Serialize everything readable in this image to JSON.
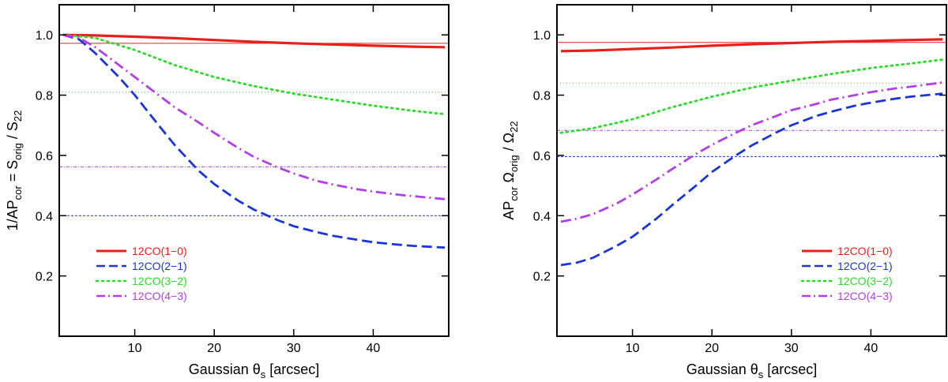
{
  "chart_data": [
    {
      "type": "line",
      "xlabel": "Gaussian θs [arcsec]",
      "xlabel_main": "Gaussian θ",
      "xlabel_sub": "s",
      "xlabel_tail": " [arcsec]",
      "ylabel": "1/APcor = Sorig / S22",
      "ylabel_parts": [
        "1/AP",
        "cor",
        " = S",
        "orig",
        " / S",
        "22"
      ],
      "xlim": [
        0.5,
        49.5
      ],
      "ylim": [
        0,
        1.1
      ],
      "xticks": [
        10,
        20,
        30,
        40
      ],
      "xtick_labels": [
        "10",
        "20",
        "30",
        "40"
      ],
      "yticks": [
        0.2,
        0.4,
        0.6,
        0.8,
        1.0
      ],
      "ytick_labels": [
        "0.2",
        "0.4",
        "0.6",
        "0.8",
        "1.0"
      ],
      "legend_position": "bottom-left",
      "series": [
        {
          "name": "12CO(1−0)",
          "color": "#e8201c",
          "style": "solid",
          "x": [
            1,
            5,
            10,
            15,
            20,
            25,
            30,
            35,
            40,
            45,
            49
          ],
          "y": [
            1.0,
            0.998,
            0.994,
            0.989,
            0.983,
            0.977,
            0.972,
            0.968,
            0.964,
            0.961,
            0.959
          ],
          "reference": 0.972
        },
        {
          "name": "12CO(2−1)",
          "color": "#1a35d8",
          "style": "dashed",
          "x": [
            1,
            3,
            5,
            8,
            10,
            13,
            15,
            18,
            20,
            23,
            25,
            28,
            30,
            33,
            35,
            38,
            40,
            43,
            45,
            49
          ],
          "y": [
            1.0,
            0.985,
            0.94,
            0.86,
            0.8,
            0.7,
            0.635,
            0.55,
            0.505,
            0.45,
            0.42,
            0.385,
            0.365,
            0.345,
            0.333,
            0.32,
            0.312,
            0.304,
            0.3,
            0.294
          ],
          "reference": 0.4
        },
        {
          "name": "12CO(3−2)",
          "color": "#2bdb2b",
          "style": "dotted",
          "x": [
            1,
            5,
            10,
            15,
            20,
            25,
            30,
            35,
            40,
            45,
            49
          ],
          "y": [
            1.0,
            0.99,
            0.95,
            0.9,
            0.86,
            0.83,
            0.805,
            0.785,
            0.765,
            0.748,
            0.737
          ],
          "reference": 0.81
        },
        {
          "name": "12CO(4−3)",
          "color": "#b23ee6",
          "style": "dashdot",
          "x": [
            1,
            3,
            5,
            8,
            10,
            13,
            15,
            18,
            20,
            23,
            25,
            28,
            30,
            33,
            35,
            38,
            40,
            43,
            45,
            49
          ],
          "y": [
            1.0,
            0.99,
            0.96,
            0.9,
            0.86,
            0.8,
            0.76,
            0.71,
            0.675,
            0.625,
            0.595,
            0.56,
            0.54,
            0.515,
            0.503,
            0.488,
            0.48,
            0.47,
            0.465,
            0.455
          ],
          "reference": 0.562
        }
      ]
    },
    {
      "type": "line",
      "xlabel": "Gaussian θs [arcsec]",
      "xlabel_main": "Gaussian θ",
      "xlabel_sub": "s",
      "xlabel_tail": " [arcsec]",
      "ylabel": "APcor Ωorig / Ω22",
      "ylabel_parts": [
        "AP",
        "cor",
        " Ω",
        "orig",
        " / Ω",
        "22"
      ],
      "xlim": [
        0.5,
        49.5
      ],
      "ylim": [
        0,
        1.1
      ],
      "xticks": [
        10,
        20,
        30,
        40
      ],
      "xtick_labels": [
        "10",
        "20",
        "30",
        "40"
      ],
      "yticks": [
        0.2,
        0.4,
        0.6,
        0.8,
        1.0
      ],
      "ytick_labels": [
        "0.2",
        "0.4",
        "0.6",
        "0.8",
        "1.0"
      ],
      "legend_position": "bottom-right",
      "series": [
        {
          "name": "12CO(1−0)",
          "color": "#e8201c",
          "style": "solid",
          "x": [
            1,
            5,
            10,
            15,
            20,
            25,
            30,
            35,
            40,
            45,
            49
          ],
          "y": [
            0.946,
            0.948,
            0.953,
            0.958,
            0.964,
            0.969,
            0.973,
            0.977,
            0.98,
            0.983,
            0.985
          ],
          "reference": 0.975
        },
        {
          "name": "12CO(2−1)",
          "color": "#1a35d8",
          "style": "dashed",
          "x": [
            1,
            3,
            5,
            8,
            10,
            13,
            15,
            18,
            20,
            23,
            25,
            28,
            30,
            33,
            35,
            38,
            40,
            43,
            45,
            49
          ],
          "y": [
            0.236,
            0.244,
            0.26,
            0.3,
            0.33,
            0.39,
            0.435,
            0.5,
            0.545,
            0.6,
            0.633,
            0.675,
            0.7,
            0.73,
            0.745,
            0.765,
            0.775,
            0.788,
            0.795,
            0.805
          ],
          "reference": 0.596
        },
        {
          "name": "12CO(3−2)",
          "color": "#2bdb2b",
          "style": "dotted",
          "x": [
            1,
            5,
            10,
            15,
            20,
            25,
            30,
            35,
            40,
            45,
            49
          ],
          "y": [
            0.675,
            0.69,
            0.72,
            0.76,
            0.795,
            0.825,
            0.848,
            0.87,
            0.89,
            0.905,
            0.918
          ],
          "reference": 0.84
        },
        {
          "name": "12CO(4−3)",
          "color": "#b23ee6",
          "style": "dashdot",
          "x": [
            1,
            3,
            5,
            8,
            10,
            13,
            15,
            18,
            20,
            23,
            25,
            28,
            30,
            33,
            35,
            38,
            40,
            43,
            45,
            49
          ],
          "y": [
            0.38,
            0.39,
            0.405,
            0.44,
            0.47,
            0.52,
            0.555,
            0.605,
            0.635,
            0.675,
            0.7,
            0.73,
            0.75,
            0.77,
            0.785,
            0.8,
            0.81,
            0.822,
            0.828,
            0.842
          ],
          "reference": 0.683
        }
      ]
    }
  ]
}
